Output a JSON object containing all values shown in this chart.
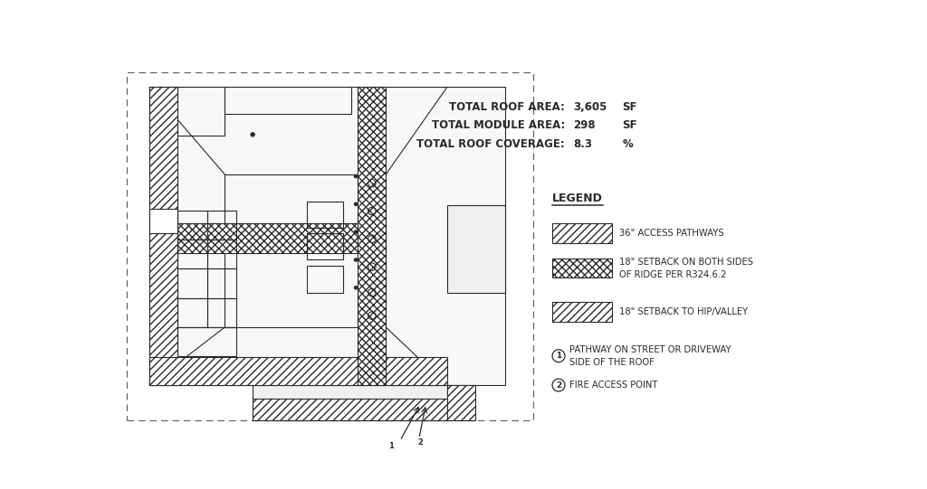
{
  "bg_color": "#ffffff",
  "line_color": "#2a2a2a",
  "stats": {
    "roof_area": "3,605",
    "module_area": "298",
    "coverage": "8.3",
    "roof_unit": "SF",
    "module_unit": "SF",
    "coverage_unit": "%"
  },
  "legend_title": "LEGEND",
  "legend_items": [
    {
      "label": "36\" ACCESS PATHWAYS",
      "hatch": "////"
    },
    {
      "label": "18\" SETBACK ON BOTH SIDES\nOF RIDGE PER R324.6.2",
      "hatch": "xxxx"
    },
    {
      "label": "18\" SETBACK TO HIP/VALLEY",
      "hatch": "////"
    }
  ],
  "callouts": [
    {
      "num": "1",
      "text": "PATHWAY ON STREET OR DRIVEWAY\nSIDE OF THE ROOF"
    },
    {
      "num": "2",
      "text": "FIRE ACCESS POINT"
    }
  ]
}
